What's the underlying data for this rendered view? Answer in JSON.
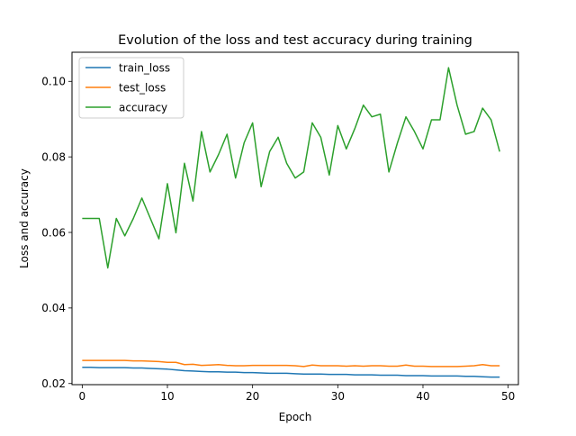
{
  "chart_data": {
    "type": "line",
    "title": "Evolution of the loss and test accuracy during training",
    "xlabel": "Epoch",
    "ylabel": "Loss and accuracy",
    "xlim": [
      -1.2,
      51.2
    ],
    "ylim": [
      0.0197,
      0.1077
    ],
    "xticks": [
      0,
      10,
      20,
      30,
      40,
      50
    ],
    "xtick_labels": [
      "0",
      "10",
      "20",
      "30",
      "40",
      "50"
    ],
    "yticks": [
      0.02,
      0.04,
      0.06,
      0.08,
      0.1
    ],
    "ytick_labels": [
      "0.02",
      "0.04",
      "0.06",
      "0.08",
      "0.10"
    ],
    "grid": false,
    "legend": "top-left",
    "x": [
      0,
      1,
      2,
      3,
      4,
      5,
      6,
      7,
      8,
      9,
      10,
      11,
      12,
      13,
      14,
      15,
      16,
      17,
      18,
      19,
      20,
      21,
      22,
      23,
      24,
      25,
      26,
      27,
      28,
      29,
      30,
      31,
      32,
      33,
      34,
      35,
      36,
      37,
      38,
      39,
      40,
      41,
      42,
      43,
      44,
      45,
      46,
      47,
      48,
      49
    ],
    "series": [
      {
        "name": "train_loss",
        "color": "#1f77b4",
        "values": [
          0.0243,
          0.0243,
          0.0242,
          0.0242,
          0.0242,
          0.0242,
          0.0241,
          0.0241,
          0.024,
          0.0239,
          0.0238,
          0.0236,
          0.0234,
          0.0233,
          0.0232,
          0.0231,
          0.0231,
          0.023,
          0.023,
          0.0229,
          0.0229,
          0.0228,
          0.0227,
          0.0227,
          0.0227,
          0.0226,
          0.0225,
          0.0225,
          0.0225,
          0.0224,
          0.0224,
          0.0224,
          0.0223,
          0.0223,
          0.0223,
          0.0222,
          0.0222,
          0.0222,
          0.0221,
          0.0221,
          0.0221,
          0.022,
          0.022,
          0.022,
          0.022,
          0.0219,
          0.0219,
          0.0218,
          0.0217,
          0.0217
        ]
      },
      {
        "name": "test_loss",
        "color": "#ff7f0e",
        "values": [
          0.0261,
          0.0261,
          0.0261,
          0.0261,
          0.0261,
          0.0261,
          0.026,
          0.026,
          0.0259,
          0.0258,
          0.0256,
          0.0256,
          0.025,
          0.0251,
          0.0248,
          0.0249,
          0.025,
          0.0248,
          0.0247,
          0.0247,
          0.0248,
          0.0248,
          0.0248,
          0.0248,
          0.0248,
          0.0247,
          0.0245,
          0.0249,
          0.0247,
          0.0247,
          0.0247,
          0.0246,
          0.0247,
          0.0246,
          0.0247,
          0.0247,
          0.0246,
          0.0246,
          0.0249,
          0.0246,
          0.0246,
          0.0245,
          0.0245,
          0.0245,
          0.0245,
          0.0246,
          0.0247,
          0.025,
          0.0247,
          0.0247
        ]
      },
      {
        "name": "accuracy",
        "color": "#2ca02c",
        "values": [
          0.0637,
          0.0637,
          0.0637,
          0.0506,
          0.0637,
          0.0591,
          0.0637,
          0.0691,
          0.0637,
          0.0583,
          0.0729,
          0.0599,
          0.0783,
          0.0683,
          0.0867,
          0.076,
          0.0806,
          0.086,
          0.0744,
          0.0837,
          0.089,
          0.0721,
          0.0814,
          0.0852,
          0.0783,
          0.0744,
          0.076,
          0.089,
          0.0852,
          0.0752,
          0.0883,
          0.0821,
          0.0875,
          0.0937,
          0.0906,
          0.0913,
          0.076,
          0.0837,
          0.0906,
          0.0867,
          0.0821,
          0.0898,
          0.0898,
          0.1036,
          0.0937,
          0.086,
          0.0867,
          0.0929,
          0.0898,
          0.0814
        ]
      }
    ]
  }
}
